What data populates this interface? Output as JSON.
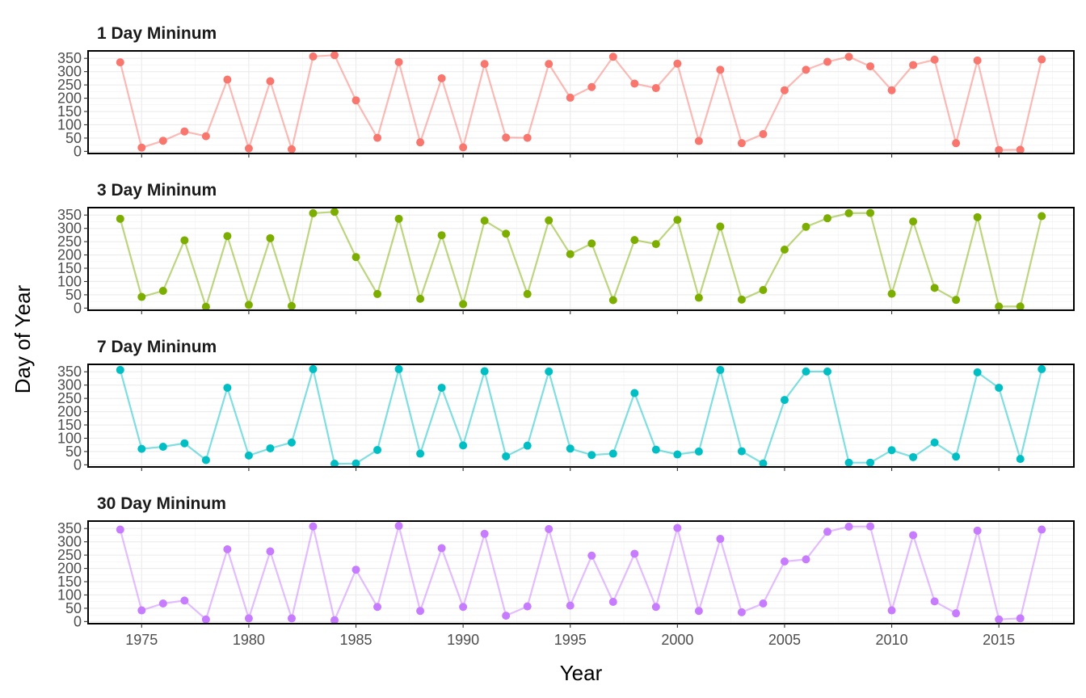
{
  "chart_data": {
    "type": "line",
    "xlabel": "Year",
    "ylabel": "Day of Year",
    "xlim": [
      1972.5,
      2018.5
    ],
    "ylim": [
      -8,
      378
    ],
    "x_ticks": [
      1975,
      1980,
      1985,
      1990,
      1995,
      2000,
      2005,
      2010,
      2015
    ],
    "y_ticks": [
      0,
      50,
      100,
      150,
      200,
      250,
      300,
      350
    ],
    "grid": true,
    "legend": "none",
    "x": [
      1974,
      1975,
      1976,
      1977,
      1978,
      1979,
      1980,
      1981,
      1982,
      1983,
      1984,
      1985,
      1986,
      1987,
      1988,
      1989,
      1990,
      1991,
      1992,
      1993,
      1994,
      1995,
      1996,
      1997,
      1998,
      1999,
      2000,
      2001,
      2002,
      2003,
      2004,
      2005,
      2006,
      2007,
      2008,
      2009,
      2010,
      2011,
      2012,
      2013,
      2014,
      2015,
      2016,
      2017
    ],
    "panels": [
      {
        "title": "1 Day Mininum",
        "color": "#F8766D",
        "values": [
          335,
          14,
          40,
          75,
          57,
          270,
          11,
          264,
          8,
          357,
          362,
          192,
          51,
          336,
          34,
          275,
          15,
          329,
          52,
          51,
          329,
          202,
          242,
          356,
          255,
          238,
          330,
          39,
          307,
          31,
          65,
          230,
          307,
          337,
          356,
          320,
          230,
          325,
          345,
          31,
          342,
          5,
          6,
          346
        ]
      },
      {
        "title": "3 Day Mininum",
        "color": "#7CAE00",
        "values": [
          336,
          42,
          65,
          255,
          5,
          271,
          12,
          263,
          8,
          357,
          362,
          192,
          53,
          336,
          35,
          274,
          15,
          329,
          280,
          53,
          330,
          203,
          243,
          30,
          256,
          241,
          332,
          39,
          307,
          32,
          68,
          220,
          306,
          338,
          357,
          358,
          54,
          326,
          76,
          31,
          342,
          6,
          6,
          346
        ]
      },
      {
        "title": "7 Day Mininum",
        "color": "#00BFC4",
        "values": [
          357,
          60,
          68,
          81,
          18,
          290,
          35,
          62,
          84,
          360,
          4,
          5,
          56,
          360,
          42,
          290,
          73,
          352,
          32,
          72,
          351,
          61,
          37,
          42,
          270,
          57,
          39,
          50,
          357,
          51,
          5,
          244,
          351,
          351,
          8,
          8,
          55,
          29,
          84,
          31,
          348,
          290,
          22,
          360
        ]
      },
      {
        "title": "30 Day Mininum",
        "color": "#C77CFF",
        "values": [
          346,
          42,
          68,
          79,
          8,
          272,
          12,
          264,
          12,
          358,
          5,
          195,
          55,
          360,
          40,
          276,
          55,
          330,
          22,
          57,
          348,
          60,
          248,
          74,
          255,
          55,
          352,
          40,
          311,
          35,
          68,
          226,
          234,
          338,
          357,
          358,
          42,
          325,
          76,
          31,
          342,
          8,
          12,
          346
        ]
      }
    ]
  }
}
